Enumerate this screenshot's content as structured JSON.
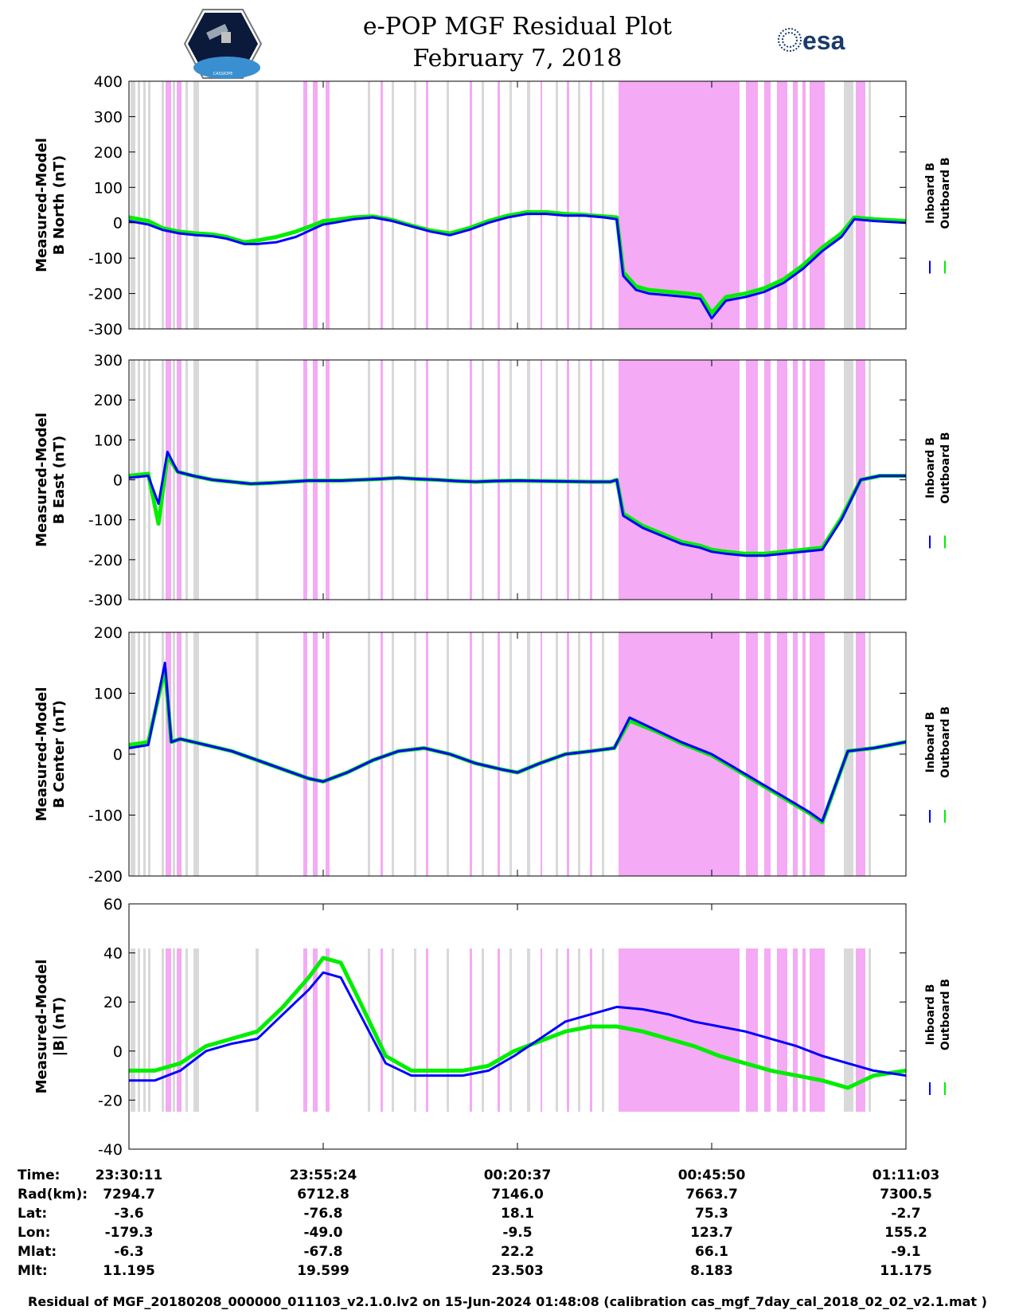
{
  "title": {
    "line1": "e-POP MGF Residual Plot",
    "line2": "February 7, 2018"
  },
  "logos": {
    "left_text": "CASSIOPE",
    "right_text": "esa"
  },
  "colors": {
    "inboard": "#0000ff",
    "outboard": "#00ee00",
    "grey_band": "#d9d9d9",
    "pink_band": "#f4aaf4"
  },
  "legend": {
    "inboard_label": "Inboard B",
    "outboard_label": "Outboard B"
  },
  "chart_data": [
    {
      "type": "line",
      "title": "",
      "ylabel_line1": "Measured-Model",
      "ylabel_line2": "B North (nT)",
      "ylim": [
        -300,
        400
      ],
      "yticks": [
        400,
        300,
        200,
        100,
        0,
        -100,
        -200,
        -300
      ],
      "xlim": [
        0,
        6052
      ],
      "series": [
        {
          "name": "Inboard B",
          "x": [
            0,
            150,
            260,
            390,
            520,
            650,
            760,
            900,
            1000,
            1150,
            1300,
            1450,
            1513,
            1600,
            1750,
            1900,
            2050,
            2200,
            2350,
            2500,
            2650,
            2800,
            2950,
            3026,
            3100,
            3250,
            3400,
            3550,
            3700,
            3800,
            3850,
            3950,
            4050,
            4200,
            4350,
            4450,
            4539,
            4650,
            4800,
            4950,
            5100,
            5250,
            5400,
            5550,
            5650,
            5800,
            6052
          ],
          "y": [
            5,
            -5,
            -20,
            -30,
            -35,
            -38,
            -45,
            -60,
            -60,
            -55,
            -40,
            -15,
            -5,
            0,
            10,
            15,
            5,
            -10,
            -25,
            -35,
            -20,
            0,
            15,
            20,
            25,
            25,
            20,
            20,
            15,
            10,
            -150,
            -190,
            -200,
            -205,
            -210,
            -215,
            -270,
            -220,
            -210,
            -195,
            -170,
            -130,
            -80,
            -40,
            10,
            5,
            0
          ]
        },
        {
          "name": "Outboard B",
          "x": [
            0,
            150,
            260,
            390,
            520,
            650,
            760,
            900,
            1000,
            1150,
            1300,
            1450,
            1513,
            1600,
            1750,
            1900,
            2050,
            2200,
            2350,
            2500,
            2650,
            2800,
            2950,
            3026,
            3100,
            3250,
            3400,
            3550,
            3700,
            3800,
            3850,
            3950,
            4050,
            4200,
            4350,
            4450,
            4539,
            4650,
            4800,
            4950,
            5100,
            5250,
            5400,
            5550,
            5650,
            5800,
            6052
          ],
          "y": [
            15,
            5,
            -15,
            -25,
            -30,
            -33,
            -40,
            -55,
            -50,
            -40,
            -25,
            -5,
            5,
            8,
            15,
            18,
            8,
            -8,
            -22,
            -30,
            -15,
            5,
            20,
            25,
            30,
            30,
            25,
            22,
            18,
            15,
            -140,
            -180,
            -190,
            -195,
            -200,
            -205,
            -255,
            -210,
            -200,
            -185,
            -160,
            -120,
            -70,
            -30,
            15,
            10,
            5
          ]
        }
      ]
    },
    {
      "type": "line",
      "title": "",
      "ylabel_line1": "Measured-Model",
      "ylabel_line2": "B East (nT)",
      "ylim": [
        -300,
        300
      ],
      "yticks": [
        300,
        200,
        100,
        0,
        -100,
        -200,
        -300
      ],
      "xlim": [
        0,
        6052
      ],
      "series": [
        {
          "name": "Inboard B",
          "x": [
            0,
            150,
            230,
            300,
            380,
            500,
            650,
            800,
            950,
            1100,
            1250,
            1400,
            1513,
            1650,
            1800,
            1950,
            2100,
            2250,
            2400,
            2550,
            2700,
            2850,
            3026,
            3200,
            3400,
            3600,
            3750,
            3800,
            3850,
            4000,
            4150,
            4300,
            4450,
            4539,
            4650,
            4800,
            4950,
            5100,
            5250,
            5400,
            5550,
            5700,
            5850,
            6052
          ],
          "y": [
            5,
            10,
            -60,
            70,
            20,
            10,
            0,
            -5,
            -10,
            -8,
            -5,
            -2,
            -2,
            -2,
            0,
            2,
            5,
            2,
            0,
            -3,
            -5,
            -3,
            -2,
            -3,
            -4,
            -5,
            -5,
            0,
            -90,
            -120,
            -140,
            -160,
            -170,
            -180,
            -185,
            -190,
            -190,
            -185,
            -180,
            -175,
            -100,
            0,
            10,
            10
          ]
        },
        {
          "name": "Outboard B",
          "x": [
            0,
            150,
            230,
            300,
            380,
            500,
            650,
            800,
            950,
            1100,
            1250,
            1400,
            1513,
            1650,
            1800,
            1950,
            2100,
            2250,
            2400,
            2550,
            2700,
            2850,
            3026,
            3200,
            3400,
            3600,
            3750,
            3800,
            3850,
            4000,
            4150,
            4300,
            4450,
            4539,
            4650,
            4800,
            4950,
            5100,
            5250,
            5400,
            5550,
            5700,
            5850,
            6052
          ],
          "y": [
            10,
            15,
            -110,
            60,
            20,
            10,
            0,
            -5,
            -10,
            -8,
            -5,
            -2,
            -2,
            -2,
            0,
            2,
            5,
            2,
            0,
            -3,
            -5,
            -3,
            -2,
            -3,
            -4,
            -5,
            -5,
            0,
            -85,
            -115,
            -135,
            -155,
            -165,
            -175,
            -180,
            -185,
            -185,
            -180,
            -175,
            -170,
            -95,
            0,
            10,
            10
          ]
        }
      ]
    },
    {
      "type": "line",
      "title": "",
      "ylabel_line1": "Measured-Model",
      "ylabel_line2": "B Center (nT)",
      "ylim": [
        -200,
        200
      ],
      "yticks": [
        200,
        100,
        0,
        -100,
        -200
      ],
      "xlim": [
        0,
        6052
      ],
      "series": [
        {
          "name": "Inboard B",
          "x": [
            0,
            150,
            280,
            330,
            400,
            600,
            800,
            1000,
            1200,
            1400,
            1513,
            1700,
            1900,
            2100,
            2300,
            2500,
            2700,
            2900,
            3026,
            3200,
            3400,
            3600,
            3780,
            3900,
            4100,
            4300,
            4539,
            4700,
            4900,
            5100,
            5300,
            5400,
            5600,
            5800,
            6052
          ],
          "y": [
            10,
            15,
            150,
            20,
            25,
            15,
            5,
            -10,
            -25,
            -40,
            -45,
            -30,
            -10,
            5,
            10,
            0,
            -15,
            -25,
            -30,
            -15,
            0,
            5,
            10,
            60,
            40,
            20,
            0,
            -20,
            -45,
            -70,
            -95,
            -110,
            5,
            10,
            20
          ]
        },
        {
          "name": "Outboard B",
          "x": [
            0,
            150,
            280,
            330,
            400,
            600,
            800,
            1000,
            1200,
            1400,
            1513,
            1700,
            1900,
            2100,
            2300,
            2500,
            2700,
            2900,
            3026,
            3200,
            3400,
            3600,
            3780,
            3900,
            4100,
            4300,
            4539,
            4700,
            4900,
            5100,
            5300,
            5400,
            5600,
            5800,
            6052
          ],
          "y": [
            15,
            20,
            140,
            20,
            25,
            15,
            5,
            -10,
            -25,
            -40,
            -45,
            -30,
            -10,
            5,
            10,
            0,
            -15,
            -25,
            -30,
            -15,
            0,
            5,
            10,
            55,
            38,
            18,
            -2,
            -22,
            -47,
            -72,
            -97,
            -112,
            5,
            10,
            20
          ]
        }
      ]
    },
    {
      "type": "line",
      "title": "",
      "ylabel_line1": "Measured-Model",
      "ylabel_line2": "|B| (nT)",
      "ylim": [
        -40,
        60
      ],
      "yticks": [
        60,
        40,
        20,
        0,
        -20,
        -40
      ],
      "xlim": [
        0,
        6052
      ],
      "series": [
        {
          "name": "Inboard B",
          "x": [
            0,
            200,
            400,
            600,
            800,
            1000,
            1200,
            1400,
            1513,
            1650,
            1800,
            2000,
            2200,
            2400,
            2600,
            2800,
            3000,
            3200,
            3400,
            3600,
            3800,
            4000,
            4200,
            4400,
            4600,
            4800,
            5000,
            5200,
            5400,
            5600,
            5800,
            6052
          ],
          "y": [
            -12,
            -12,
            -8,
            0,
            3,
            5,
            15,
            25,
            32,
            30,
            15,
            -5,
            -10,
            -10,
            -10,
            -8,
            -2,
            5,
            12,
            15,
            18,
            17,
            15,
            12,
            10,
            8,
            5,
            2,
            -2,
            -5,
            -8,
            -10
          ]
        },
        {
          "name": "Outboard B",
          "x": [
            0,
            200,
            400,
            600,
            800,
            1000,
            1200,
            1400,
            1513,
            1650,
            1800,
            2000,
            2200,
            2400,
            2600,
            2800,
            3000,
            3200,
            3400,
            3600,
            3800,
            4000,
            4200,
            4400,
            4600,
            4800,
            5000,
            5200,
            5400,
            5600,
            5800,
            6052
          ],
          "y": [
            -8,
            -8,
            -5,
            2,
            5,
            8,
            18,
            30,
            38,
            36,
            20,
            -2,
            -8,
            -8,
            -8,
            -6,
            0,
            4,
            8,
            10,
            10,
            8,
            5,
            2,
            -2,
            -5,
            -8,
            -10,
            -12,
            -15,
            -10,
            -8
          ]
        }
      ]
    }
  ],
  "x_axis": {
    "ticks": [
      "23:30:11",
      "23:55:24",
      "00:20:37",
      "00:45:50",
      "01:11:03"
    ]
  },
  "info_table": {
    "rows": [
      {
        "label": "Time:",
        "values": [
          "23:30:11",
          "23:55:24",
          "00:20:37",
          "00:45:50",
          "01:11:03"
        ]
      },
      {
        "label": "Rad(km):",
        "values": [
          "7294.7",
          "6712.8",
          "7146.0",
          "7663.7",
          "7300.5"
        ]
      },
      {
        "label": "Lat:",
        "values": [
          "-3.6",
          "-76.8",
          "18.1",
          "75.3",
          "-2.7"
        ]
      },
      {
        "label": "Lon:",
        "values": [
          "-179.3",
          "-49.0",
          "-9.5",
          "123.7",
          "155.2"
        ]
      },
      {
        "label": "Mlat:",
        "values": [
          "-6.3",
          "-67.8",
          "22.2",
          "66.1",
          "-9.1"
        ]
      },
      {
        "label": "Mlt:",
        "values": [
          "11.195",
          "19.599",
          "23.503",
          "8.183",
          "11.175"
        ]
      }
    ]
  },
  "footer": "Residual of MGF_20180208_000000_011103_v2.1.0.lv2 on 15-Jun-2024 01:48:08 (calibration cas_mgf_7day_cal_2018_02_02_v2.1.mat )"
}
